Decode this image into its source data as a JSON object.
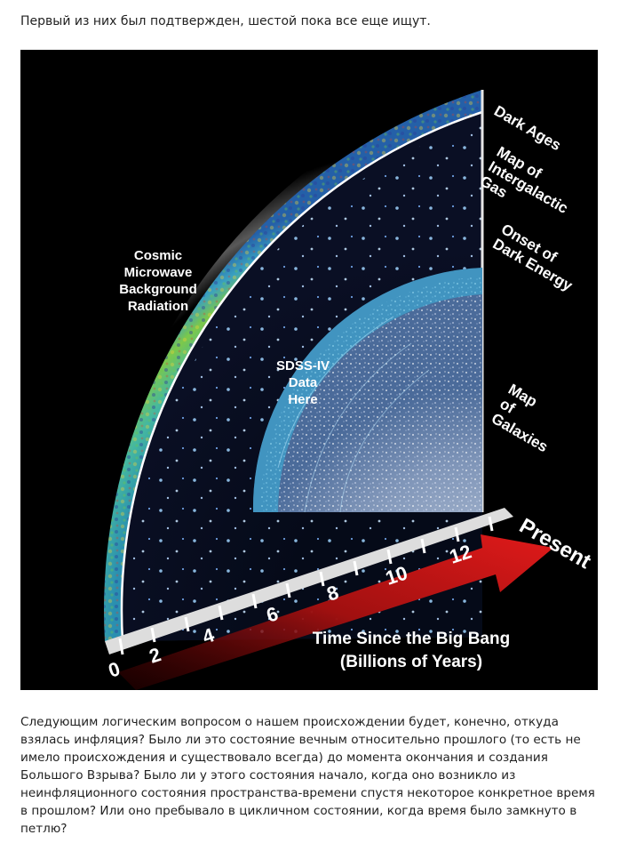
{
  "intro_text": "Первый из них был подтвержден, шестой пока все еще ищут.",
  "figure": {
    "cmb_label": [
      "Cosmic",
      "Microwave",
      "Background",
      "Radiation"
    ],
    "sdss_label": [
      "SDSS-IV",
      "Data",
      "Here"
    ],
    "epochs": {
      "dark_ages": "Dark Ages",
      "gas": [
        "Map of",
        "Intergalactic",
        "Gas"
      ],
      "dark_energy": [
        "Onset of",
        "Dark Energy"
      ],
      "galaxies": [
        "Map",
        "of",
        "Galaxies"
      ]
    },
    "present": "Present",
    "axis_title": [
      "Time Since the Big Bang",
      "(Billions of Years)"
    ],
    "ticks": [
      "0",
      "2",
      "4",
      "6",
      "8",
      "10",
      "12"
    ],
    "colors": {
      "background": "#000000",
      "arrow": "#c8161a",
      "cmb_base": "#2fa6b8",
      "sdss_shell": "#3bb7e0"
    }
  },
  "paragraph": "Следующим логическим вопросом о нашем происхождении будет, конечно, откуда взялась инфляция? Было ли это состояние вечным относительно прошлого (то есть не имело происхождения и существовало всегда) до момента окончания и создания Большого Взрыва? Было ли у этого состояния начало, когда оно возникло из неинфляционного состояния пространства-времени спустя некоторое конкретное время в прошлом? Или оно пребывало в цикличном состоянии, когда время было замкнуто в петлю?"
}
